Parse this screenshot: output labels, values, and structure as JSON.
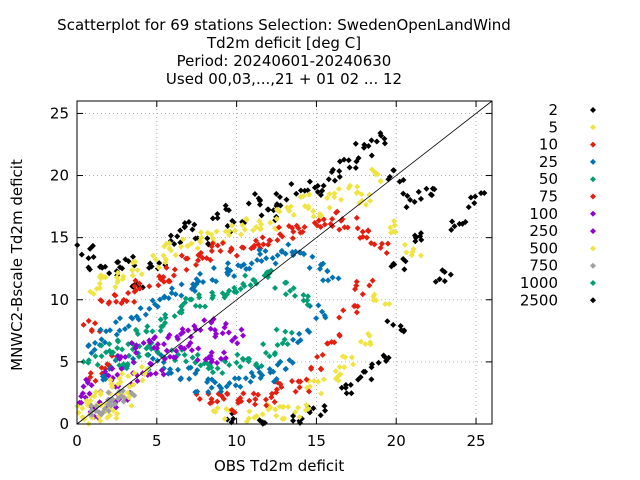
{
  "chart_data": {
    "type": "scatter",
    "title_lines": [
      "Scatterplot for   69 stations Selection: SwedenOpenLandWind",
      "Td2m deficit [deg C]",
      "Period: 20240601-20240630",
      "Used 00,03,...,21 + 01 02 ... 12"
    ],
    "xlabel": "OBS Td2m deficit",
    "ylabel": "MNWC2-Bscale Td2m deficit",
    "xlim": [
      0,
      26
    ],
    "ylim": [
      0,
      26
    ],
    "x_ticks": [
      0,
      5,
      10,
      15,
      20,
      25
    ],
    "y_ticks": [
      0,
      5,
      10,
      15,
      20,
      25
    ],
    "grid": true,
    "diagonal_line": true,
    "legend_position": "right",
    "legend_title": "",
    "series": [
      {
        "name": "2",
        "color": "#000000",
        "shape": "diamond"
      },
      {
        "name": "5",
        "color": "#f0e442",
        "shape": "diamond"
      },
      {
        "name": "10",
        "color": "#e51e10",
        "shape": "diamond"
      },
      {
        "name": "25",
        "color": "#0072b2",
        "shape": "diamond"
      },
      {
        "name": "50",
        "color": "#009e73",
        "shape": "diamond"
      },
      {
        "name": "75",
        "color": "#e51e10",
        "shape": "diamond"
      },
      {
        "name": "100",
        "color": "#9400d3",
        "shape": "diamond"
      },
      {
        "name": "250",
        "color": "#9400d3",
        "shape": "diamond"
      },
      {
        "name": "500",
        "color": "#f0e442",
        "shape": "diamond"
      },
      {
        "name": "750",
        "color": "#a0a0a0",
        "shape": "diamond"
      },
      {
        "name": "1000",
        "color": "#009e73",
        "shape": "diamond"
      },
      {
        "name": "2500",
        "color": "#000000",
        "shape": "diamond"
      }
    ],
    "density_bands": [
      {
        "series": "2",
        "points": [
          [
            0.5,
            14
          ],
          [
            1,
            13
          ],
          [
            2,
            12.5
          ],
          [
            3,
            13
          ],
          [
            4,
            11
          ],
          [
            5,
            13
          ],
          [
            6,
            15
          ],
          [
            7,
            16
          ],
          [
            8,
            15
          ],
          [
            9,
            17
          ],
          [
            10,
            16
          ],
          [
            11,
            18
          ],
          [
            12,
            17
          ],
          [
            13,
            18
          ],
          [
            14,
            19
          ],
          [
            15,
            19
          ],
          [
            16,
            20
          ],
          [
            17,
            21
          ],
          [
            18,
            22
          ],
          [
            19,
            23
          ],
          [
            20,
            20
          ],
          [
            21,
            18
          ],
          [
            22,
            19
          ],
          [
            23,
            12
          ],
          [
            24,
            16
          ],
          [
            25,
            18
          ],
          [
            20,
            8
          ],
          [
            19,
            5
          ],
          [
            18,
            4
          ],
          [
            17,
            3
          ],
          [
            15,
            1
          ],
          [
            14,
            0.5
          ],
          [
            12,
            0
          ],
          [
            10,
            0.3
          ],
          [
            20,
            13
          ],
          [
            21,
            15
          ]
        ]
      },
      {
        "series": "5",
        "points": [
          [
            1,
            11
          ],
          [
            2,
            12
          ],
          [
            3,
            11.5
          ],
          [
            4,
            12.5
          ],
          [
            5,
            13
          ],
          [
            6,
            14
          ],
          [
            7,
            14.5
          ],
          [
            8,
            15
          ],
          [
            9,
            15
          ],
          [
            10,
            15.5
          ],
          [
            11,
            16
          ],
          [
            12,
            16
          ],
          [
            13,
            17
          ],
          [
            14,
            18
          ],
          [
            15,
            17
          ],
          [
            16,
            18
          ],
          [
            17,
            19
          ],
          [
            18,
            18
          ],
          [
            19,
            20
          ],
          [
            20,
            16
          ],
          [
            21,
            14
          ],
          [
            19,
            10
          ],
          [
            18,
            7
          ],
          [
            17,
            5
          ],
          [
            16,
            4
          ],
          [
            15,
            3
          ],
          [
            14,
            1
          ],
          [
            13,
            1
          ],
          [
            12,
            1
          ],
          [
            11,
            0.5
          ],
          [
            9,
            1
          ],
          [
            1,
            2
          ],
          [
            2,
            1
          ]
        ]
      },
      {
        "series": "10",
        "points": [
          [
            1,
            8
          ],
          [
            2,
            10
          ],
          [
            3,
            10
          ],
          [
            4,
            11
          ],
          [
            5,
            11.5
          ],
          [
            6,
            12
          ],
          [
            7,
            13
          ],
          [
            8,
            13.5
          ],
          [
            9,
            14
          ],
          [
            10,
            14
          ],
          [
            11,
            14.5
          ],
          [
            12,
            15
          ],
          [
            13,
            15.5
          ],
          [
            14,
            16
          ],
          [
            15,
            16
          ],
          [
            16,
            16.5
          ],
          [
            17,
            16
          ],
          [
            18,
            15
          ],
          [
            19,
            14
          ],
          [
            18,
            11
          ],
          [
            17,
            9
          ],
          [
            16,
            7
          ],
          [
            15,
            5
          ],
          [
            14,
            3
          ],
          [
            13,
            3
          ],
          [
            12,
            2
          ],
          [
            11,
            2
          ],
          [
            10,
            1.5
          ],
          [
            9,
            2
          ],
          [
            8,
            2
          ],
          [
            1,
            4
          ],
          [
            2,
            5
          ]
        ]
      },
      {
        "series": "25",
        "points": [
          [
            1,
            6
          ],
          [
            2,
            7
          ],
          [
            3,
            8
          ],
          [
            4,
            9
          ],
          [
            5,
            10
          ],
          [
            6,
            10.5
          ],
          [
            7,
            11
          ],
          [
            8,
            11.5
          ],
          [
            9,
            12
          ],
          [
            10,
            12.5
          ],
          [
            11,
            13
          ],
          [
            12,
            13.5
          ],
          [
            13,
            14
          ],
          [
            14,
            13.5
          ],
          [
            15,
            13
          ],
          [
            16,
            12
          ],
          [
            15,
            9
          ],
          [
            14,
            7
          ],
          [
            13,
            5
          ],
          [
            12,
            4
          ],
          [
            11,
            4
          ],
          [
            10,
            3.5
          ],
          [
            9,
            3
          ],
          [
            8,
            3
          ],
          [
            7,
            4
          ],
          [
            6,
            4
          ],
          [
            5,
            5
          ],
          [
            3,
            5
          ],
          [
            2,
            4
          ]
        ]
      },
      {
        "series": "50",
        "points": [
          [
            1,
            5
          ],
          [
            2,
            6
          ],
          [
            3,
            6.5
          ],
          [
            4,
            7.5
          ],
          [
            5,
            8
          ],
          [
            6,
            9
          ],
          [
            7,
            9.5
          ],
          [
            8,
            10
          ],
          [
            9,
            10.5
          ],
          [
            10,
            11
          ],
          [
            11,
            11.5
          ],
          [
            12,
            12
          ],
          [
            13,
            11
          ],
          [
            14,
            10
          ],
          [
            13,
            7
          ],
          [
            12,
            6
          ],
          [
            11,
            5
          ],
          [
            10,
            5
          ],
          [
            9,
            4.5
          ],
          [
            8,
            4.5
          ],
          [
            7,
            5
          ],
          [
            6,
            5.5
          ],
          [
            5,
            6
          ],
          [
            4,
            6
          ],
          [
            3,
            5
          ]
        ]
      },
      {
        "series": "100",
        "points": [
          [
            1,
            3
          ],
          [
            2,
            4
          ],
          [
            3,
            5
          ],
          [
            4,
            6
          ],
          [
            5,
            6.5
          ],
          [
            6,
            7
          ],
          [
            7,
            7.5
          ],
          [
            8,
            8
          ],
          [
            9,
            7.5
          ],
          [
            10,
            7
          ],
          [
            9,
            5.5
          ],
          [
            8,
            5.5
          ],
          [
            7,
            6
          ],
          [
            6,
            5.5
          ],
          [
            5,
            4.5
          ],
          [
            4,
            3.5
          ],
          [
            3,
            2.5
          ],
          [
            2,
            1.5
          ],
          [
            1,
            1
          ],
          [
            0.5,
            2
          ]
        ]
      },
      {
        "series": "500",
        "points": [
          [
            0.5,
            1
          ],
          [
            1,
            2
          ],
          [
            2,
            3
          ],
          [
            3,
            3.5
          ],
          [
            4,
            4
          ],
          [
            3,
            2
          ],
          [
            2,
            1
          ],
          [
            1,
            0.5
          ]
        ]
      },
      {
        "series": "750",
        "points": [
          [
            1,
            1
          ],
          [
            1.5,
            1.5
          ],
          [
            2,
            1.5
          ],
          [
            2.5,
            2
          ],
          [
            3,
            2.5
          ]
        ]
      }
    ]
  }
}
